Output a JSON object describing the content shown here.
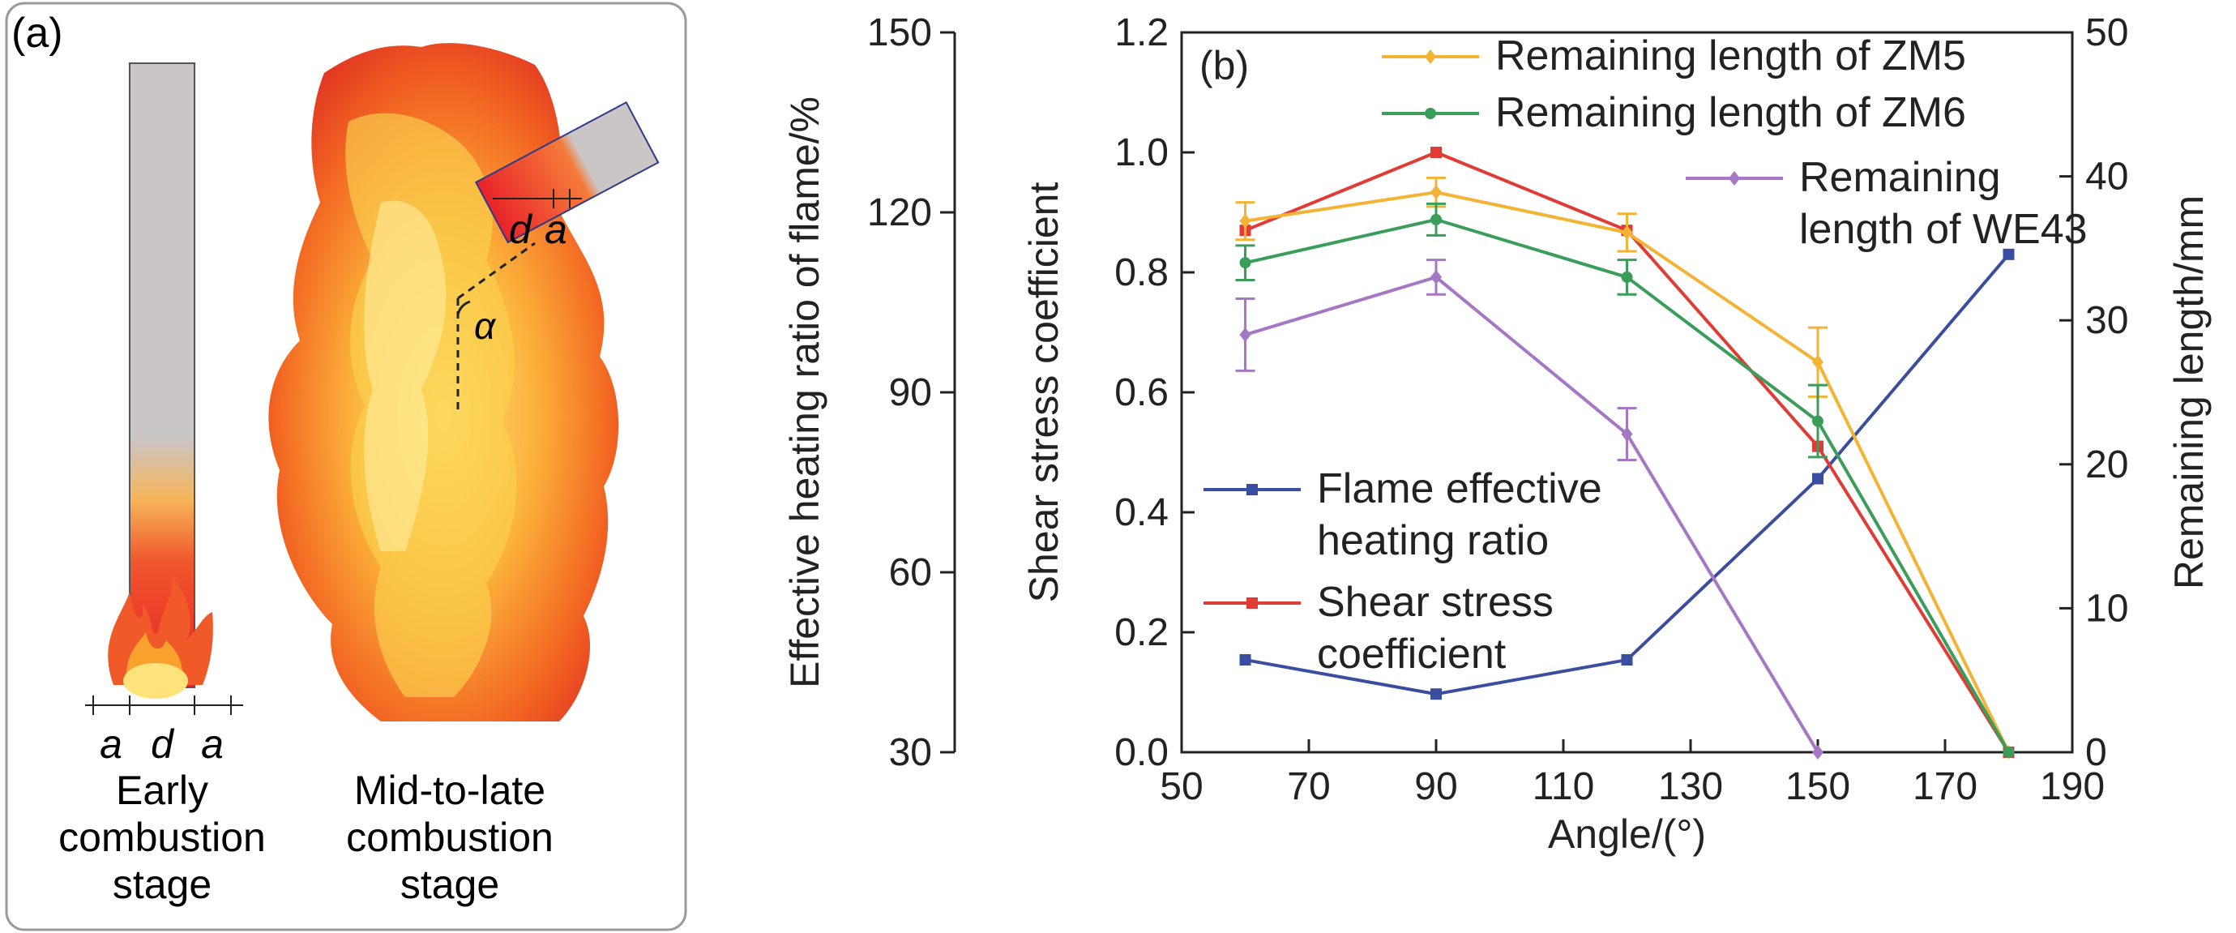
{
  "panel_a": {
    "label": "(a)",
    "early_stage_lines": [
      "Early",
      "combustion",
      "stage"
    ],
    "late_stage_lines": [
      "Mid-to-late",
      "combustion",
      "stage"
    ],
    "dim_a": "a",
    "dim_d": "d",
    "angle_symbol": "α",
    "icons": {
      "flame_small": "flame-icon",
      "flame_large": "fire-column-icon",
      "rod": "rod-icon"
    }
  },
  "chart_data": {
    "type": "line",
    "panel_label": "(b)",
    "xlabel": "Angle/(°)",
    "xlim": [
      50,
      190
    ],
    "xticks": [
      50,
      70,
      90,
      110,
      130,
      150,
      170,
      190
    ],
    "axes": {
      "heating": {
        "label": "Effective heating ratio of flame/%",
        "lim": [
          30,
          150
        ],
        "ticks": [
          30,
          60,
          90,
          120,
          150
        ]
      },
      "shear": {
        "label": "Shear stress coefficient",
        "lim": [
          0.0,
          1.2
        ],
        "ticks": [
          "0.0",
          "0.2",
          "0.4",
          "0.6",
          "0.8",
          "1.0",
          "1.2"
        ]
      },
      "remaining": {
        "label": "Remaining length/mm",
        "lim": [
          0,
          50
        ],
        "ticks": [
          0,
          10,
          20,
          30,
          40,
          50
        ]
      }
    },
    "series": [
      {
        "name": "Flame effective heating ratio",
        "axis": "heating",
        "color": "#3a4ea0",
        "marker": "square",
        "x": [
          60,
          90,
          120,
          150,
          180
        ],
        "y": [
          45.4,
          39.7,
          45.4,
          75.6,
          113.0
        ],
        "err": []
      },
      {
        "name": "Shear stress coefficient",
        "axis": "shear",
        "color": "#e23a35",
        "marker": "square",
        "x": [
          60,
          90,
          120,
          150,
          180
        ],
        "y": [
          0.87,
          1.0,
          0.87,
          0.51,
          0.0
        ],
        "err": []
      },
      {
        "name": "Remaining length of ZM5",
        "axis": "remaining",
        "color": "#f5b335",
        "marker": "diamond",
        "x": [
          60,
          90,
          120,
          150,
          180
        ],
        "y": [
          36.9,
          38.9,
          36.1,
          27.1,
          0
        ],
        "err": [
          1.3,
          1.0,
          1.3,
          2.4,
          0
        ]
      },
      {
        "name": "Remaining length of ZM6",
        "axis": "remaining",
        "color": "#3a9e5a",
        "marker": "circle",
        "x": [
          60,
          90,
          120,
          150,
          180
        ],
        "y": [
          34.0,
          37.0,
          33.0,
          23.0,
          0
        ],
        "err": [
          1.2,
          1.1,
          1.2,
          2.5,
          0
        ]
      },
      {
        "name": "Remaining length of WE43",
        "axis": "remaining",
        "color": "#a577c4",
        "marker": "diamond",
        "x": [
          60,
          90,
          120,
          150
        ],
        "y": [
          29.0,
          33.0,
          22.1,
          0
        ],
        "err": [
          2.5,
          1.2,
          1.8,
          0
        ]
      }
    ],
    "legend_lower": [
      {
        "lines": [
          "Flame effective",
          "heating ratio"
        ],
        "color": "#3a4ea0"
      },
      {
        "lines": [
          "Shear stress",
          "coefficient"
        ],
        "color": "#e23a35"
      }
    ],
    "legend_upper": [
      {
        "lines": [
          "Remaining length of ZM5"
        ],
        "color": "#f5b335"
      },
      {
        "lines": [
          "Remaining length of ZM6"
        ],
        "color": "#3a9e5a"
      },
      {
        "lines": [
          "Remaining",
          "length of WE43"
        ],
        "color": "#a577c4"
      }
    ]
  }
}
